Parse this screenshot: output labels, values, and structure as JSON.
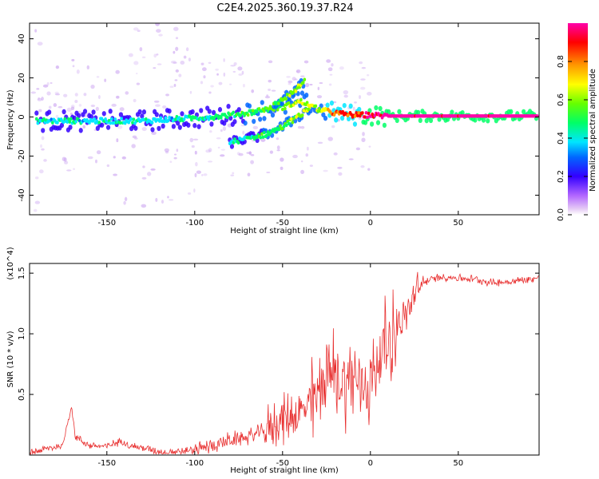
{
  "title": "C2E4.2025.360.19.37.R24",
  "chart_data": [
    {
      "type": "heatmap",
      "xlabel": "Height of straight line (km)",
      "ylabel": "Frequency (Hz)",
      "xlim": [
        -194,
        96
      ],
      "ylim": [
        -50,
        48
      ],
      "xticks": [
        -150,
        -100,
        -50,
        0,
        50
      ],
      "yticks": [
        -40,
        -20,
        0,
        20,
        40
      ],
      "colorbar": {
        "label": "Normalized spectral amplitude",
        "range": [
          0.0,
          1.0
        ],
        "ticks": [
          0.0,
          0.2,
          0.4,
          0.6,
          0.8
        ]
      },
      "ridges": [
        {
          "name": "main",
          "x": [
            -190,
            -170,
            -150,
            -130,
            -110,
            -90,
            -70,
            -60,
            -50,
            -40,
            -30,
            -20,
            -10,
            0,
            10,
            30,
            60,
            95
          ],
          "y": [
            -2,
            -2,
            -2,
            -2,
            -1,
            0,
            2,
            4,
            5,
            8,
            4,
            2,
            1,
            1,
            0.5,
            0.5,
            0.5,
            0.5
          ],
          "amp": [
            0.35,
            0.35,
            0.35,
            0.35,
            0.35,
            0.4,
            0.45,
            0.45,
            0.5,
            0.6,
            0.6,
            0.75,
            0.8,
            0.9,
            0.95,
            0.95,
            0.95,
            0.98
          ]
        },
        {
          "name": "upper-branch",
          "x": [
            -55,
            -50,
            -45,
            -40,
            -37
          ],
          "y": [
            6,
            9,
            12,
            16,
            19
          ],
          "amp": [
            0.45,
            0.5,
            0.55,
            0.55,
            0.45
          ]
        },
        {
          "name": "lower-branch",
          "x": [
            -80,
            -70,
            -60,
            -50,
            -40,
            -35
          ],
          "y": [
            -13,
            -11,
            -9,
            -5,
            1,
            4
          ],
          "amp": [
            0.35,
            0.4,
            0.45,
            0.5,
            0.55,
            0.55
          ]
        }
      ]
    },
    {
      "type": "line",
      "xlabel": "Height of straight line (km)",
      "ylabel": "SNR (10 * v/v)",
      "y_multiplier": "(x10^4)",
      "xlim": [
        -194,
        96
      ],
      "ylim": [
        0,
        1.58
      ],
      "xticks": [
        -150,
        -100,
        -50,
        0,
        50
      ],
      "yticks": [
        0.5,
        1.0,
        1.5
      ],
      "series": [
        {
          "name": "SNR",
          "color": "#e83030",
          "x": [
            -194,
            -185,
            -175,
            -172,
            -170,
            -168,
            -160,
            -150,
            -145,
            -140,
            -138,
            -130,
            -120,
            -110,
            -100,
            -90,
            -80,
            -70,
            -60,
            -50,
            -40,
            -35,
            -30,
            -25,
            -20,
            -15,
            -10,
            -5,
            0,
            5,
            10,
            15,
            20,
            25,
            30,
            35,
            40,
            50,
            60,
            70,
            80,
            90,
            96
          ],
          "y": [
            0.02,
            0.05,
            0.08,
            0.3,
            0.4,
            0.15,
            0.08,
            0.07,
            0.1,
            0.12,
            0.08,
            0.06,
            0.03,
            0.03,
            0.04,
            0.08,
            0.12,
            0.15,
            0.2,
            0.3,
            0.35,
            0.4,
            0.5,
            0.7,
            0.65,
            0.6,
            0.65,
            0.55,
            0.6,
            0.8,
            0.95,
            1.05,
            1.15,
            1.3,
            1.42,
            1.45,
            1.47,
            1.46,
            1.45,
            1.42,
            1.43,
            1.45,
            1.46
          ]
        }
      ]
    }
  ]
}
